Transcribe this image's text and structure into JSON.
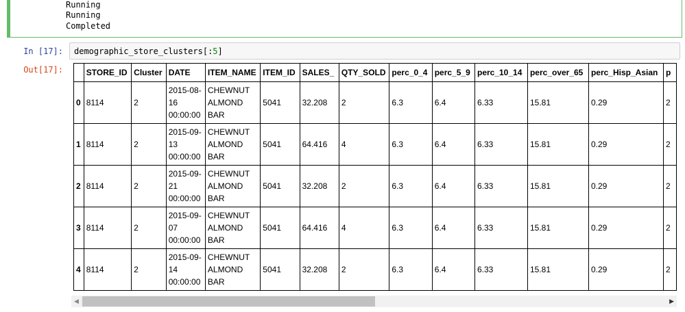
{
  "previous_output": [
    "Running",
    "Running",
    "Completed"
  ],
  "cell": {
    "in_prompt": "In [17]:",
    "code_prefix": "demographic_store_clusters[:",
    "code_num": "5",
    "code_suffix": "]",
    "out_prompt": "Out[17]:"
  },
  "table": {
    "columns": [
      "",
      "STORE_ID",
      "Cluster",
      "DATE",
      "ITEM_NAME",
      "ITEM_ID",
      "SALES_",
      "QTY_SOLD",
      "perc_0_4",
      "perc_5_9",
      "perc_10_14",
      "perc_over_65",
      "perc_Hisp_Asian",
      "p"
    ],
    "rows": [
      [
        "0",
        "8114",
        "2",
        "2015-08-16 00:00:00",
        "CHEWNUT ALMOND BAR",
        "5041",
        "32.208",
        "2",
        "6.3",
        "6.4",
        "6.33",
        "15.81",
        "0.29",
        "2"
      ],
      [
        "1",
        "8114",
        "2",
        "2015-09-13 00:00:00",
        "CHEWNUT ALMOND BAR",
        "5041",
        "64.416",
        "4",
        "6.3",
        "6.4",
        "6.33",
        "15.81",
        "0.29",
        "2"
      ],
      [
        "2",
        "8114",
        "2",
        "2015-09-21 00:00:00",
        "CHEWNUT ALMOND BAR",
        "5041",
        "32.208",
        "2",
        "6.3",
        "6.4",
        "6.33",
        "15.81",
        "0.29",
        "2"
      ],
      [
        "3",
        "8114",
        "2",
        "2015-09-07 00:00:00",
        "CHEWNUT ALMOND BAR",
        "5041",
        "64.416",
        "4",
        "6.3",
        "6.4",
        "6.33",
        "15.81",
        "0.29",
        "2"
      ],
      [
        "4",
        "8114",
        "2",
        "2015-09-14 00:00:00",
        "CHEWNUT ALMOND BAR",
        "5041",
        "32.208",
        "2",
        "6.3",
        "6.4",
        "6.33",
        "15.81",
        "0.29",
        "2"
      ]
    ]
  },
  "scrollbar": {
    "position_percent": 0,
    "visible_fraction": 0.49
  }
}
